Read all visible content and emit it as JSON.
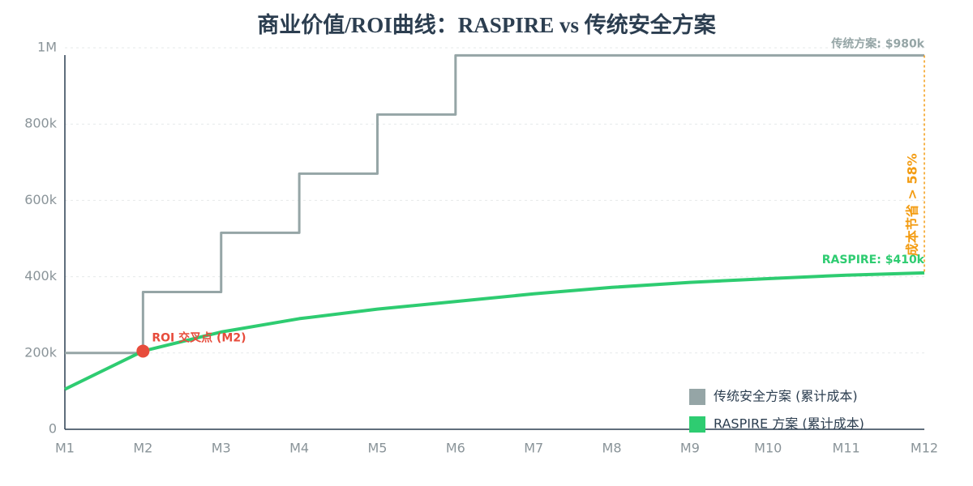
{
  "chart_data": {
    "type": "line",
    "title": "商业价值/ROI曲线：RASPIRE vs 传统安全方案",
    "categories": [
      "M1",
      "M2",
      "M3",
      "M4",
      "M5",
      "M6",
      "M7",
      "M8",
      "M9",
      "M10",
      "M11",
      "M12"
    ],
    "series": [
      {
        "name": "传统安全方案 (累计成本)",
        "color": "#95a5a6",
        "step": true,
        "values": [
          200000,
          360000,
          515000,
          670000,
          825000,
          980000,
          980000,
          980000,
          980000,
          980000,
          980000,
          980000
        ]
      },
      {
        "name": "RASPIRE 方案 (累计成本)",
        "color": "#2ecc71",
        "step": false,
        "values": [
          105000,
          205000,
          255000,
          290000,
          315000,
          335000,
          355000,
          372000,
          385000,
          395000,
          404000,
          410000
        ]
      }
    ],
    "ylim": [
      0,
      1000000
    ],
    "yticks": [
      0,
      {
        "value": 200000,
        "label": "200k"
      },
      {
        "value": 400000,
        "label": "400k"
      },
      {
        "value": 600000,
        "label": "600k"
      },
      {
        "value": 800000,
        "label": "800k"
      },
      {
        "value": 1000000,
        "label": "1M"
      }
    ],
    "grid": true,
    "legend": "lower right",
    "annotations": {
      "roi": {
        "text": "ROI 交叉点 (M2)",
        "color": "#e74c3c"
      },
      "gray_end": "传统方案: $980k",
      "green_end": "RASPIRE: $410k",
      "savings": {
        "text": "成本节省 > 58%",
        "color": "#f39c12"
      }
    }
  }
}
